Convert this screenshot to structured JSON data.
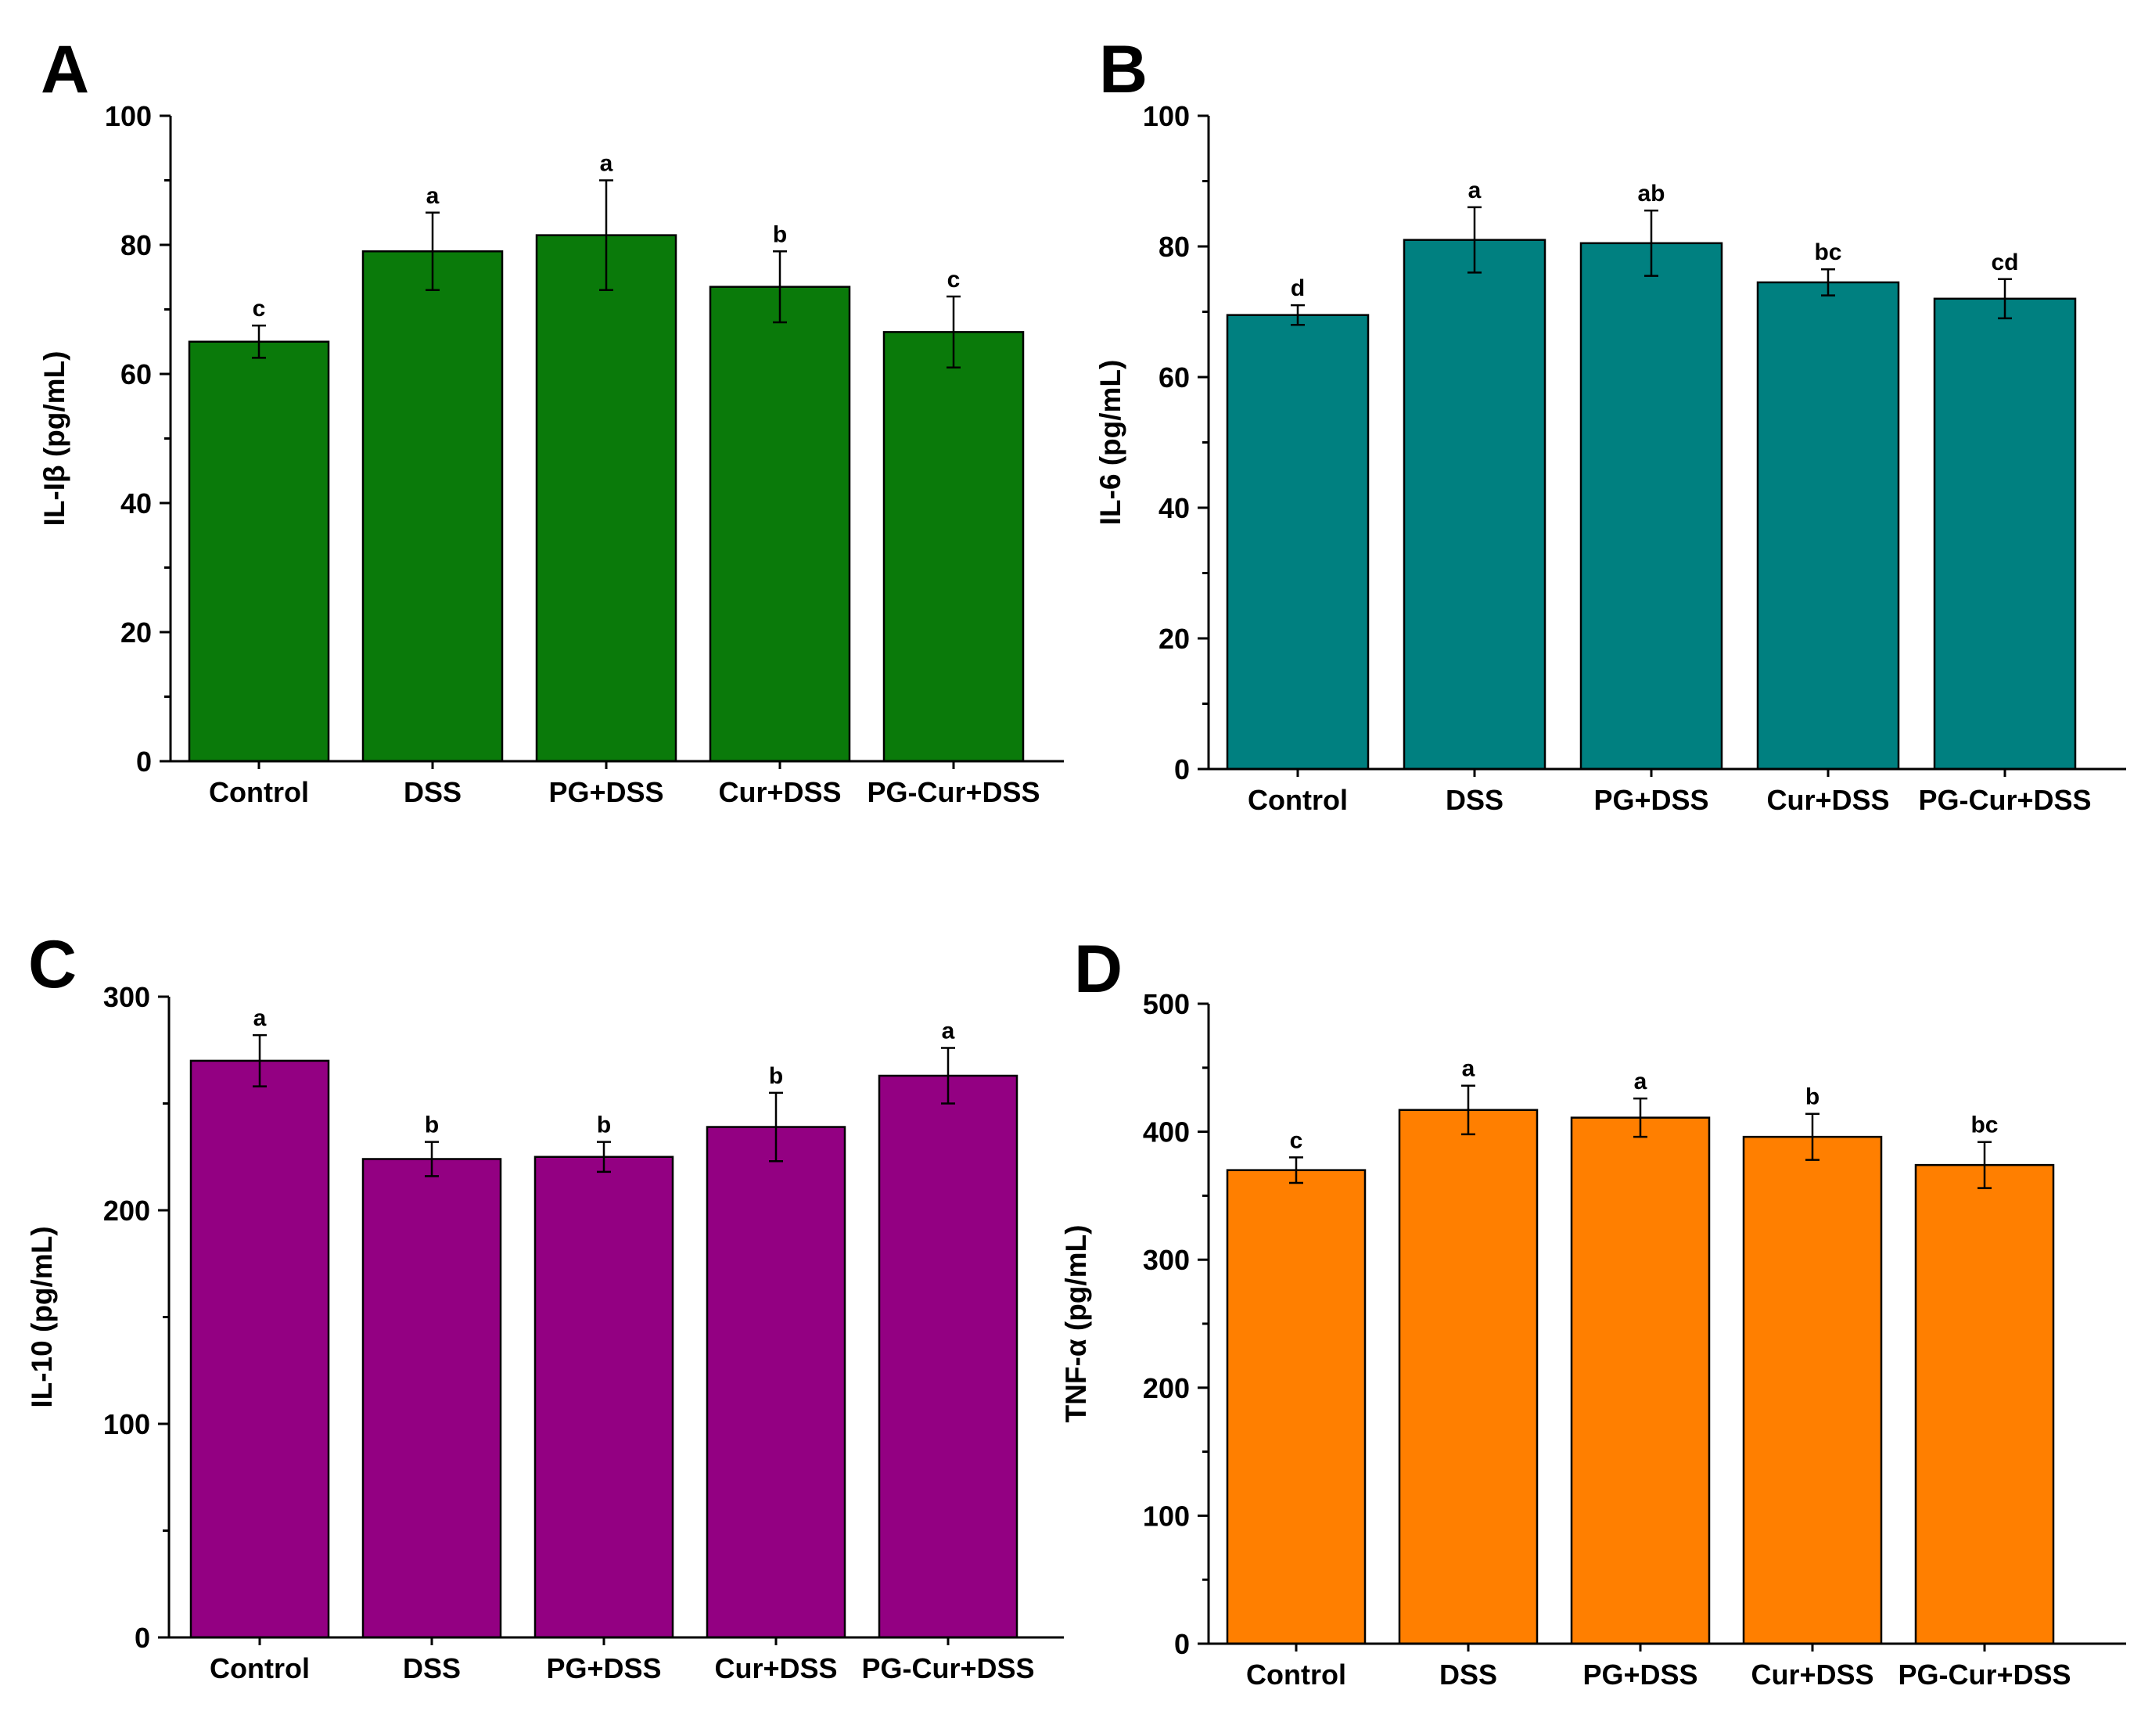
{
  "figure": {
    "colors": {
      "A": "#0a7a0a",
      "B": "#008080",
      "C": "#930082",
      "D": "#ff7f00",
      "axis": "#000000",
      "background": "#ffffff"
    }
  },
  "chart_data": [
    {
      "panel": "A",
      "type": "bar",
      "title": "",
      "xlabel": "",
      "ylabel": "IL-Iβ (pg/mL)",
      "ylim": [
        0,
        100
      ],
      "yticks": [
        0,
        20,
        40,
        60,
        80,
        100
      ],
      "categories": [
        "Control",
        "DSS",
        "PG+DSS",
        "Cur+DSS",
        "PG-Cur+DSS"
      ],
      "values": [
        65,
        79,
        81.5,
        73.5,
        66.5
      ],
      "errors": [
        2.5,
        6,
        8.5,
        5.5,
        5.5
      ],
      "significance": [
        "c",
        "a",
        "a",
        "b",
        "c"
      ]
    },
    {
      "panel": "B",
      "type": "bar",
      "title": "",
      "xlabel": "",
      "ylabel": "IL-6 (pg/mL)",
      "ylim": [
        0,
        100
      ],
      "yticks": [
        0,
        20,
        40,
        60,
        80,
        100
      ],
      "categories": [
        "Control",
        "DSS",
        "PG+DSS",
        "Cur+DSS",
        "PG-Cur+DSS"
      ],
      "values": [
        69.5,
        81,
        80.5,
        74.5,
        72
      ],
      "errors": [
        1.5,
        5,
        5,
        2,
        3
      ],
      "significance": [
        "d",
        "a",
        "ab",
        "bc",
        "cd"
      ]
    },
    {
      "panel": "C",
      "type": "bar",
      "title": "",
      "xlabel": "",
      "ylabel": "IL-10 (pg/mL)",
      "ylim": [
        0,
        300
      ],
      "yticks": [
        0,
        100,
        200,
        300
      ],
      "categories": [
        "Control",
        "DSS",
        "PG+DSS",
        "Cur+DSS",
        "PG-Cur+DSS"
      ],
      "values": [
        270,
        224,
        225,
        239,
        263
      ],
      "errors": [
        12,
        8,
        7,
        16,
        13
      ],
      "significance": [
        "a",
        "b",
        "b",
        "b",
        "a"
      ]
    },
    {
      "panel": "D",
      "type": "bar",
      "title": "",
      "xlabel": "",
      "ylabel": "TNF-α (pg/mL)",
      "ylim": [
        0,
        500
      ],
      "yticks": [
        0,
        100,
        200,
        300,
        400,
        500
      ],
      "categories": [
        "Control",
        "DSS",
        "PG+DSS",
        "Cur+DSS",
        "PG-Cur+DSS"
      ],
      "values": [
        370,
        417,
        411,
        396,
        374
      ],
      "errors": [
        10,
        19,
        15,
        18,
        18
      ],
      "significance": [
        "c",
        "a",
        "a",
        "b",
        "bc"
      ]
    }
  ]
}
